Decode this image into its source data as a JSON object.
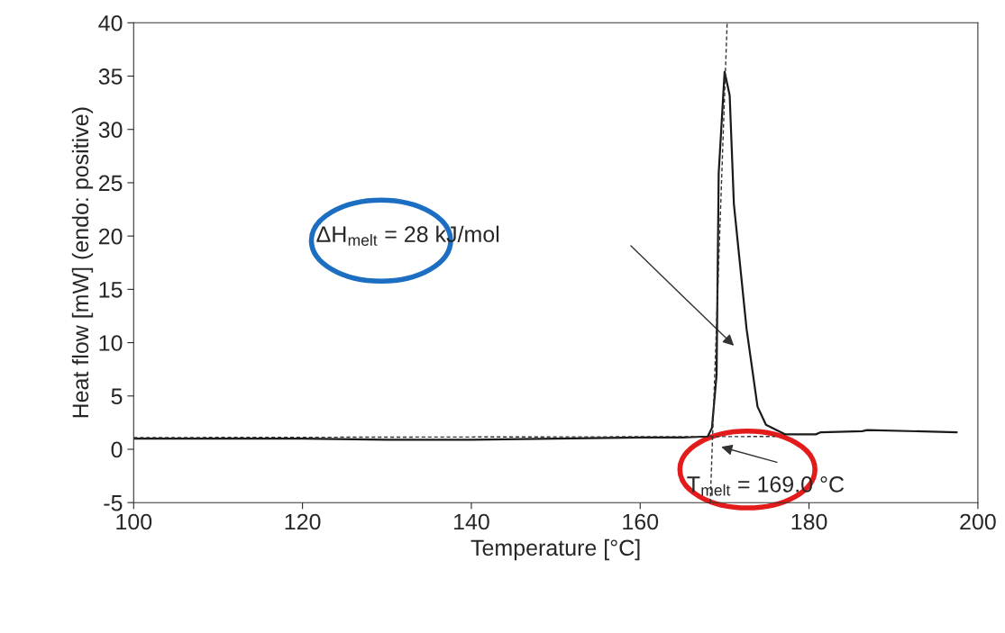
{
  "chart_data": {
    "type": "line",
    "xlabel": "Temperature [°C]",
    "ylabel": "Heat flow [mW] (endo: positive)",
    "xlim": [
      100,
      200
    ],
    "ylim": [
      -5,
      40
    ],
    "xticks": [
      100,
      120,
      140,
      160,
      180,
      200
    ],
    "yticks": [
      -5,
      0,
      5,
      10,
      15,
      20,
      25,
      30,
      35,
      40
    ],
    "grid": false,
    "series": [
      {
        "color": "#1a1a1a",
        "line_style": "solid",
        "x": [
          100,
          110,
          120,
          130,
          135,
          140,
          150,
          160,
          165,
          168,
          168.5,
          169.05,
          169.3,
          170.0,
          170.6,
          171.1,
          172.6,
          173.9,
          174.9,
          177.2,
          180.8,
          181.4,
          186.3,
          186.9,
          197.5
        ],
        "values": [
          1.0,
          1.0,
          1.0,
          0.9,
          0.9,
          0.9,
          1.0,
          1.1,
          1.1,
          1.2,
          2.0,
          7.0,
          25.9,
          35.4,
          33.2,
          23.0,
          11.3,
          4.0,
          2.3,
          1.4,
          1.4,
          1.6,
          1.7,
          1.8,
          1.6
        ]
      },
      {
        "color": "#333333",
        "line_style": "dashed",
        "x": [
          100,
          176
        ],
        "values": [
          1.1,
          1.2
        ]
      },
      {
        "color": "#333333",
        "line_style": "dashed",
        "x": [
          168.3,
          170.3
        ],
        "values": [
          -5,
          40
        ]
      }
    ],
    "annotations": [
      "ΔH$_{melt}$ = 28 kJ/mol",
      "T$_{melt}$ = 169.0 °C"
    ]
  }
}
